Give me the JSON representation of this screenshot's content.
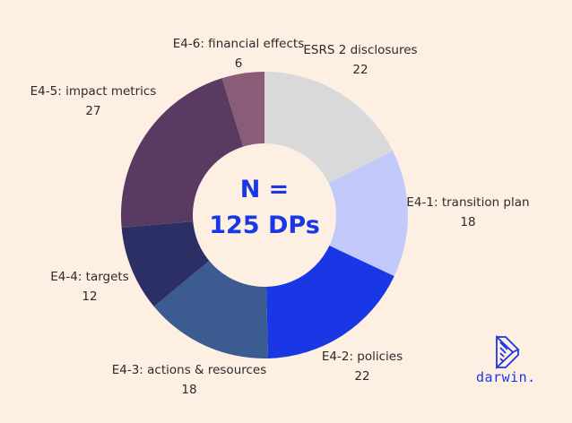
{
  "chart_data": {
    "type": "pie",
    "donut": true,
    "center_text": [
      "N =",
      "125 DPs"
    ],
    "slices": [
      {
        "label": "ESRS 2 disclosures",
        "value": 22,
        "color": "#d9d9d9"
      },
      {
        "label": "E4-1: transition plan",
        "value": 18,
        "color": "#c3c9fb"
      },
      {
        "label": "E4-2: policies",
        "value": 22,
        "color": "#1a37e6"
      },
      {
        "label": "E4-3: actions & resources",
        "value": 18,
        "color": "#3b5b91"
      },
      {
        "label": "E4-4: targets",
        "value": 12,
        "color": "#2c2e66"
      },
      {
        "label": "E4-5: impact metrics",
        "value": 27,
        "color": "#583a63"
      },
      {
        "label": "E4-6: financial effects",
        "value": 6,
        "color": "#8a5c78"
      }
    ]
  },
  "logo": {
    "text": "darwin.",
    "color": "#1a37e6"
  }
}
